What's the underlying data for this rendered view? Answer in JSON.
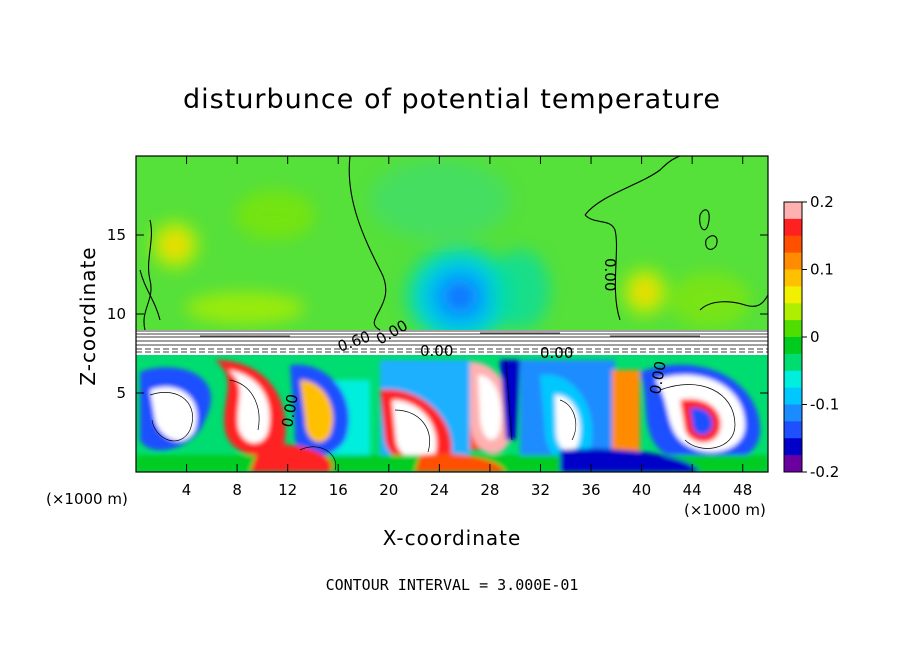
{
  "chart_data": {
    "type": "heatmap",
    "title": "disturbunce of potential temperature",
    "xlabel": "X-coordinate",
    "ylabel": "Z-coordinate",
    "x_unit_left": "(×1000 m)",
    "x_unit_right": "(×1000 m)",
    "footer": "CONTOUR INTERVAL = 3.000E-01",
    "xlim": [
      0,
      50
    ],
    "ylim": [
      0,
      20
    ],
    "x_ticks": [
      4,
      8,
      12,
      16,
      20,
      24,
      28,
      32,
      36,
      40,
      44,
      48
    ],
    "y_ticks": [
      5,
      10,
      15
    ],
    "colorbar": {
      "range": [
        -0.2,
        0.2
      ],
      "ticks": [
        "0.2",
        "0.1",
        "0",
        "-0.1",
        "-0.2"
      ],
      "colors": [
        "#ffb0b0",
        "#ff2020",
        "#ff5000",
        "#ff8c00",
        "#ffc000",
        "#f0f000",
        "#b0ee00",
        "#50dd00",
        "#00cc20",
        "#00dd70",
        "#00eedd",
        "#00c8ff",
        "#1a8cff",
        "#1e50ff",
        "#0000c8",
        "#6a00a0"
      ]
    },
    "contour_labels": [
      "0.00",
      "0.00",
      "0.00",
      "0.60",
      "0.00",
      "0.00",
      "0.00"
    ]
  },
  "colors": {
    "background": "#ffffff",
    "upper_field": "#55e03a",
    "plume": "#1ab0ff",
    "axis": "#000000"
  }
}
